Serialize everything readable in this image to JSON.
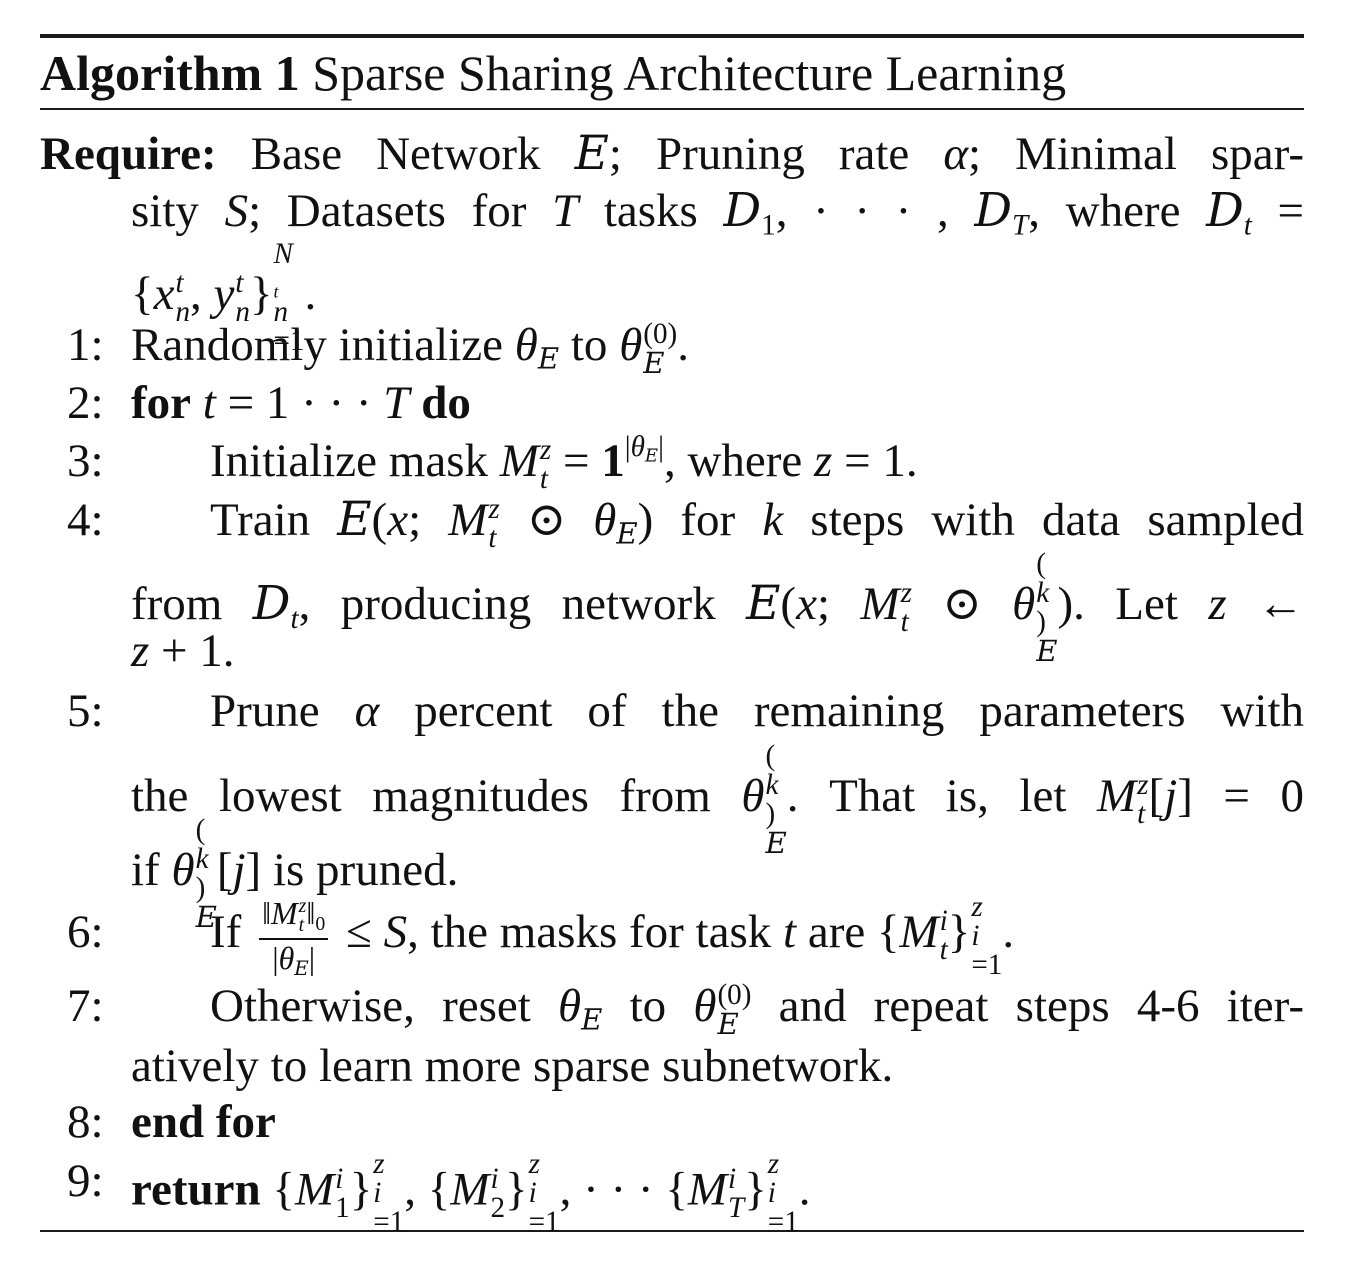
{
  "caption": {
    "label": "Algorithm 1",
    "title": "Sparse Sharing Architecture Learning"
  },
  "require": {
    "label": "Require:",
    "text_1": "Base Network",
    "text_2": "; Pruning rate",
    "text_3": "; Minimal spar-",
    "text_4": "sity",
    "text_5": "; Datasets for",
    "text_6": "tasks",
    "text_7": ", where"
  },
  "steps": [
    {
      "num": "1:",
      "text_1": "Randomly initialize",
      "text_2": "to"
    },
    {
      "num": "2:",
      "kw_for": "for",
      "kw_do": "do"
    },
    {
      "num": "3:",
      "text_1": "Initialize mask",
      "text_2": ", where"
    },
    {
      "num": "4:",
      "text_1": "Train",
      "text_2": "for",
      "text_3": "steps with data sampled",
      "text_4": "from",
      "text_5": ", producing network",
      "text_6": ". Let"
    },
    {
      "num": "5:",
      "text_1": "Prune",
      "text_2": "percent of the remaining parameters with",
      "text_3": "the lowest magnitudes from",
      "text_4": ". That is, let",
      "text_5": "if",
      "text_6": "is pruned."
    },
    {
      "num": "6:",
      "text_1": "If",
      "text_2": ", the masks for task",
      "text_3": "are"
    },
    {
      "num": "7:",
      "text_1": "Otherwise, reset",
      "text_2": "to",
      "text_3": "and repeat steps 4-6 iter-",
      "text_4": "atively to learn more sparse subnetwork."
    },
    {
      "num": "8:",
      "kw": "end for"
    },
    {
      "num": "9:",
      "kw": "return"
    }
  ]
}
